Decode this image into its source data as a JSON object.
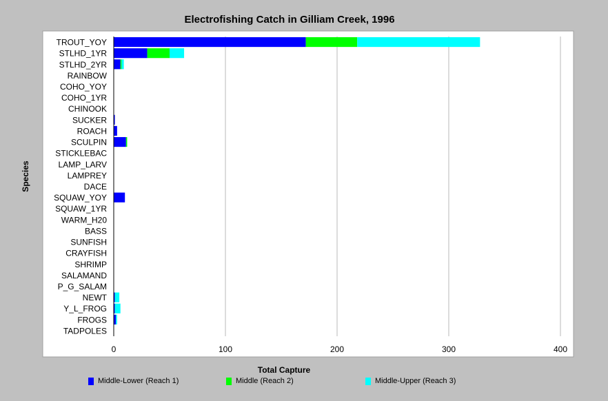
{
  "chart_data": {
    "type": "bar",
    "orientation": "horizontal",
    "stacked": true,
    "title": "Electrofishing Catch in Gilliam Creek, 1996",
    "xlabel": "Total Capture",
    "ylabel": "Species",
    "xlim": [
      0,
      400
    ],
    "xticks": [
      "0",
      "100",
      "200",
      "300",
      "400"
    ],
    "grid": true,
    "legend_position": "bottom",
    "categories": [
      "TROUT_YOY",
      "STLHD_1YR",
      "STLHD_2YR",
      "RAINBOW",
      "COHO_YOY",
      "COHO_1YR",
      "CHINOOK",
      "SUCKER",
      "ROACH",
      "SCULPIN",
      "STICKLEBAC",
      "LAMP_LARV",
      "LAMPREY",
      "DACE",
      "SQUAW_YOY",
      "SQUAW_1YR",
      "WARM_H20",
      "BASS",
      "SUNFISH",
      "CRAYFISH",
      "SHRIMP",
      "SALAMAND",
      "P_G_SALAM",
      "NEWT",
      "Y_L_FROG",
      "FROGS",
      "TADPOLES"
    ],
    "series": [
      {
        "name": "Middle-Lower (Reach 1)",
        "color": "#0000ff",
        "values": [
          172,
          30,
          6,
          0,
          0,
          0,
          0,
          1,
          3,
          11,
          0,
          0,
          0,
          0,
          10,
          0,
          0,
          0,
          0,
          0,
          0,
          0,
          0,
          1,
          1,
          2,
          0
        ]
      },
      {
        "name": "Middle (Reach 2)",
        "color": "#00ff00",
        "values": [
          46,
          20,
          1,
          0,
          0,
          0,
          0,
          0,
          0,
          1,
          0,
          0,
          0,
          0,
          0,
          0,
          0,
          0,
          0,
          0,
          0,
          0,
          0,
          0,
          0,
          0,
          0
        ]
      },
      {
        "name": "Middle-Upper (Reach 3)",
        "color": "#00ffff",
        "values": [
          110,
          13,
          2,
          0,
          0,
          0,
          0,
          0,
          0,
          0,
          0,
          0,
          0,
          0,
          0,
          0,
          0,
          0,
          0,
          0,
          0,
          0,
          0,
          4,
          5,
          1,
          0
        ]
      }
    ]
  }
}
